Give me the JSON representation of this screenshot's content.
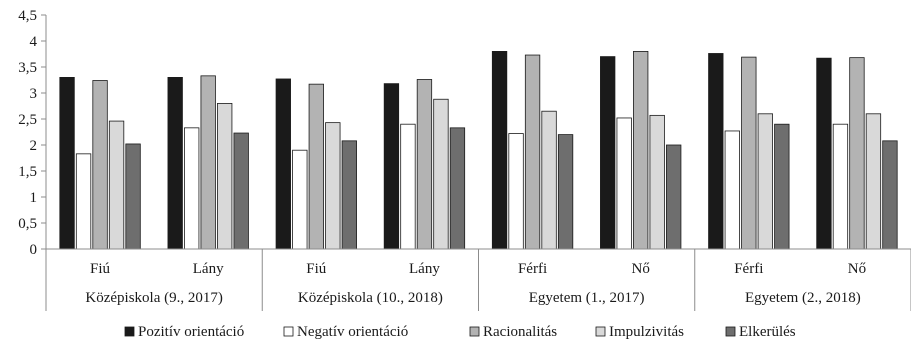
{
  "chart_data": {
    "type": "bar",
    "title": "",
    "xlabel": "",
    "ylabel": "",
    "ylim": [
      0,
      4.5
    ],
    "yticks": [
      "0",
      "0,5",
      "1",
      "1,5",
      "2",
      "2,5",
      "3",
      "3,5",
      "4",
      "4,5"
    ],
    "grid": false,
    "legend_position": "bottom",
    "groups": [
      {
        "label": "Középiskola (9., 2017)",
        "categories": [
          "Fiú",
          "Lány"
        ]
      },
      {
        "label": "Középiskola (10., 2018)",
        "categories": [
          "Fiú",
          "Lány"
        ]
      },
      {
        "label": "Egyetem (1., 2017)",
        "categories": [
          "Férfi",
          "Nő"
        ]
      },
      {
        "label": "Egyetem (2., 2018)",
        "categories": [
          "Férfi",
          "Nő"
        ]
      }
    ],
    "categories": [
      "Fiú",
      "Lány",
      "Fiú",
      "Lány",
      "Férfi",
      "Nő",
      "Férfi",
      "Nő"
    ],
    "series": [
      {
        "name": "Pozitív orientáció",
        "color": "#1a1a1a",
        "values": [
          3.3,
          3.3,
          3.27,
          3.18,
          3.8,
          3.7,
          3.76,
          3.67
        ]
      },
      {
        "name": "Negatív orientáció",
        "color": "#ffffff",
        "values": [
          1.83,
          2.33,
          1.9,
          2.4,
          2.22,
          2.52,
          2.27,
          2.4
        ]
      },
      {
        "name": "Racionalitás",
        "color": "#b3b3b3",
        "values": [
          3.24,
          3.33,
          3.17,
          3.26,
          3.73,
          3.8,
          3.69,
          3.68
        ]
      },
      {
        "name": "Impulzivitás",
        "color": "#d9d9d9",
        "values": [
          2.46,
          2.8,
          2.43,
          2.88,
          2.65,
          2.57,
          2.6,
          2.6
        ]
      },
      {
        "name": "Elkerülés",
        "color": "#6e6e6e",
        "values": [
          2.02,
          2.23,
          2.08,
          2.33,
          2.2,
          2.0,
          2.4,
          2.08
        ]
      }
    ]
  }
}
